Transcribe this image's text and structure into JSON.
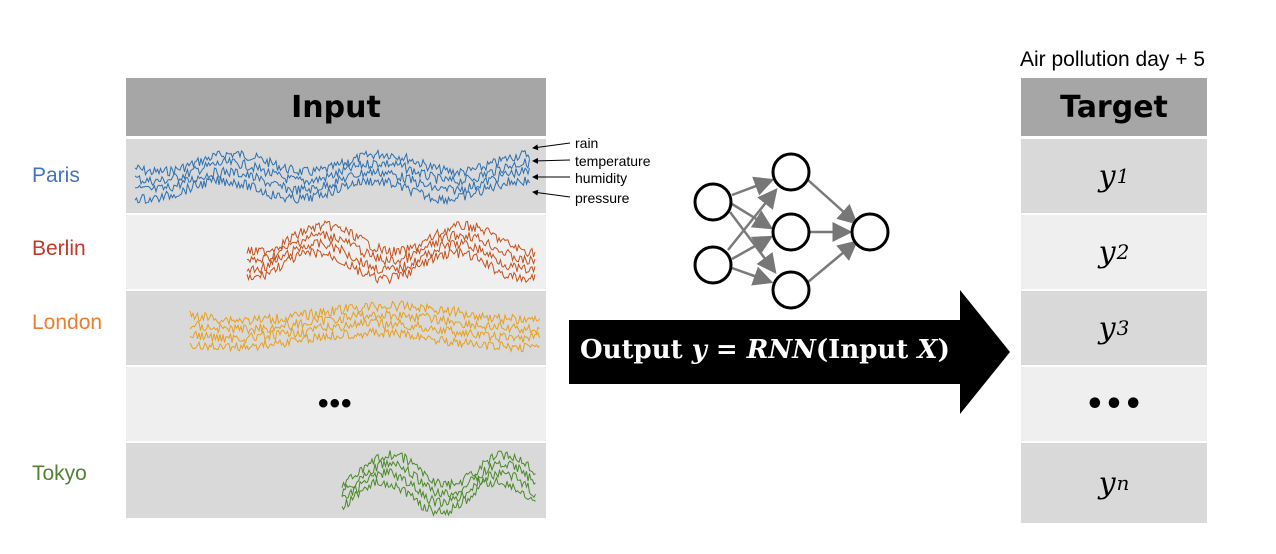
{
  "input": {
    "header": "Input",
    "rows": [
      {
        "city": "Paris",
        "color": "#2e6fae"
      },
      {
        "city": "Berlin",
        "color": "#c4521e"
      },
      {
        "city": "London",
        "color": "#e6a020"
      },
      {
        "ellipsis": "•••"
      },
      {
        "city": "Tokyo",
        "color": "#4a8a2a"
      }
    ],
    "features": [
      "rain",
      "temperature",
      "humidity",
      "pressure"
    ]
  },
  "label_colors": {
    "Paris": "#4472c4",
    "Berlin": "#c0392b",
    "London": "#ed7d31",
    "Tokyo": "#538135"
  },
  "arrow": {
    "text_prefix": "Output ",
    "var_y": "y",
    "equals": " = ",
    "func": "RNN",
    "paren_open": "(Input ",
    "var_x": "X",
    "paren_close": ")"
  },
  "target": {
    "caption": "Air pollution day + 5",
    "header": "Target",
    "cells": [
      {
        "var": "y",
        "sub": "1"
      },
      {
        "var": "y",
        "sub": "2"
      },
      {
        "var": "y",
        "sub": "3"
      },
      {
        "ellipsis": "•••"
      },
      {
        "var": "y",
        "sub": "n"
      }
    ]
  }
}
